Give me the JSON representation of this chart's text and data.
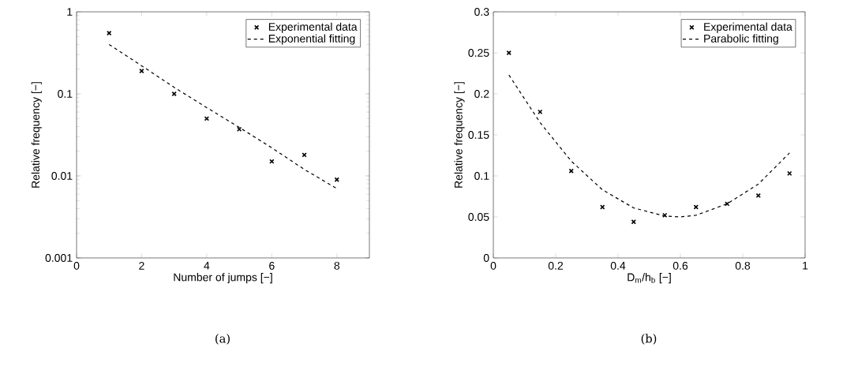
{
  "chart_data": [
    {
      "type": "scatter",
      "xlabel": "Number of jumps [−]",
      "ylabel": "Relative frequency [−]",
      "annotations": [
        "(a)"
      ],
      "xlim": [
        0,
        9
      ],
      "xticks": [
        0,
        2,
        4,
        6,
        8
      ],
      "ylim": [
        0.001,
        1
      ],
      "yticks": [
        0.001,
        0.01,
        0.1,
        1
      ],
      "log": "y",
      "legend": "top right",
      "grid": false,
      "series": [
        {
          "name": "Experimental data",
          "marker": "cross",
          "color": "#000000",
          "x": [
            1,
            2,
            3,
            4,
            5,
            6,
            7,
            8
          ],
          "values": [
            0.55,
            0.19,
            0.1,
            0.05,
            0.037,
            0.015,
            0.018,
            0.009
          ]
        },
        {
          "name": "Exponential fitting",
          "type": "line",
          "line_style": "dashed",
          "color": "#000000",
          "x": [
            1,
            2,
            3,
            4,
            5,
            6,
            7,
            8
          ],
          "values": [
            0.4,
            0.22,
            0.12,
            0.068,
            0.039,
            0.022,
            0.012,
            0.007
          ]
        }
      ]
    },
    {
      "type": "scatter",
      "xlabel": "D$_{m}$/h$_{b}$ [−]",
      "ylabel": "Relative frequency [−]",
      "annotations": [
        "(b)"
      ],
      "xlim": [
        0,
        1
      ],
      "xticks": [
        0,
        0.2,
        0.4,
        0.6,
        0.8,
        1
      ],
      "ylim": [
        0,
        0.3
      ],
      "yticks": [
        0,
        0.05,
        0.1,
        0.15,
        0.2,
        0.25,
        0.3
      ],
      "legend": "top right",
      "grid": false,
      "series": [
        {
          "name": "Experimental data",
          "marker": "cross",
          "color": "#000000",
          "x": [
            0.05,
            0.15,
            0.25,
            0.35,
            0.45,
            0.55,
            0.65,
            0.75,
            0.85,
            0.95
          ],
          "values": [
            0.25,
            0.178,
            0.106,
            0.062,
            0.044,
            0.052,
            0.062,
            0.066,
            0.076,
            0.103
          ]
        },
        {
          "name": "Parabolic fitting",
          "type": "line",
          "line_style": "dashed",
          "color": "#000000",
          "x": [
            0.05,
            0.15,
            0.25,
            0.35,
            0.45,
            0.55,
            0.6,
            0.65,
            0.75,
            0.85,
            0.95
          ],
          "values": [
            0.223,
            0.165,
            0.118,
            0.083,
            0.061,
            0.051,
            0.05,
            0.052,
            0.066,
            0.09,
            0.128
          ]
        }
      ]
    }
  ]
}
